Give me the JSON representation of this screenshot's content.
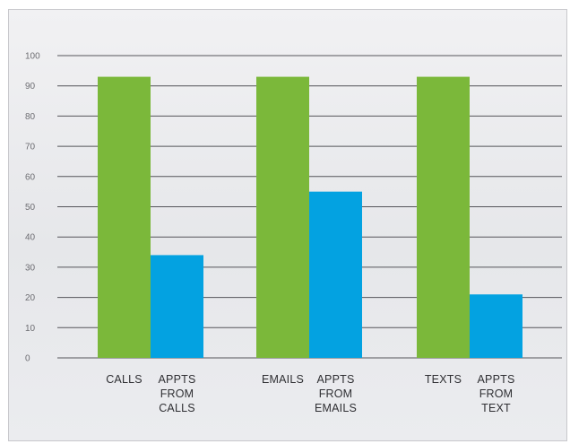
{
  "chart_data": {
    "type": "bar",
    "title": "",
    "xlabel": "",
    "ylabel": "",
    "ylim": [
      0,
      100
    ],
    "yticks": [
      0,
      10,
      20,
      30,
      40,
      50,
      60,
      70,
      80,
      90,
      100
    ],
    "grid": true,
    "legend": "none",
    "categories": [
      [
        "CALLS"
      ],
      [
        "APPTS",
        "FROM",
        "CALLS"
      ],
      [
        "EMAILS"
      ],
      [
        "APPTS",
        "FROM",
        "EMAILS"
      ],
      [
        "TEXTS"
      ],
      [
        "APPTS",
        "FROM",
        "TEXT"
      ]
    ],
    "values": [
      93,
      34,
      93,
      55,
      93,
      21
    ],
    "colors": [
      "#7bb83a",
      "#03a2e1",
      "#7bb83a",
      "#03a2e1",
      "#7bb83a",
      "#03a2e1"
    ],
    "grid_color": "#55555a",
    "tick_color": "#6d6d72"
  }
}
